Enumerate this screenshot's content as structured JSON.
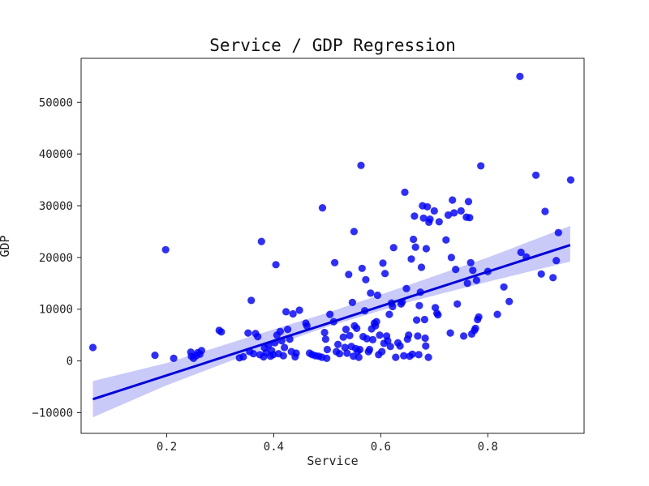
{
  "chart_data": {
    "type": "scatter",
    "title": "Service / GDP Regression",
    "xlabel": "Service",
    "ylabel": "GDP",
    "xlim": [
      0.04,
      0.98
    ],
    "ylim": [
      -14000,
      58500
    ],
    "xticks": [
      0.2,
      0.4,
      0.6,
      0.8
    ],
    "yticks": [
      -10000,
      0,
      10000,
      20000,
      30000,
      40000,
      50000
    ],
    "xtick_labels": [
      "0.2",
      "0.4",
      "0.6",
      "0.8"
    ],
    "ytick_labels": [
      "−10000",
      "0",
      "10000",
      "20000",
      "30000",
      "40000",
      "50000"
    ],
    "grid": false,
    "colors": {
      "points": "#0000ff",
      "line": "#0000dd",
      "band": "#b8b8f5"
    },
    "regression": {
      "x0": 0.062,
      "y0": -7400,
      "x1": 0.954,
      "y1": 22400
    },
    "confidence_band": [
      {
        "x": 0.062,
        "lower": -10900,
        "upper": -3900
      },
      {
        "x": 0.2,
        "lower": -4700,
        "upper": -400
      },
      {
        "x": 0.35,
        "lower": 1200,
        "upper": 4500
      },
      {
        "x": 0.5,
        "lower": 6600,
        "upper": 9300
      },
      {
        "x": 0.65,
        "lower": 11300,
        "upper": 14600
      },
      {
        "x": 0.8,
        "lower": 15300,
        "upper": 20000
      },
      {
        "x": 0.954,
        "lower": 19200,
        "upper": 26100
      }
    ],
    "points": [
      [
        0.062,
        2600
      ],
      [
        0.178,
        1100
      ],
      [
        0.198,
        21500
      ],
      [
        0.213,
        500
      ],
      [
        0.245,
        1700
      ],
      [
        0.246,
        900
      ],
      [
        0.25,
        500
      ],
      [
        0.255,
        1000
      ],
      [
        0.258,
        1600
      ],
      [
        0.262,
        1300
      ],
      [
        0.265,
        2000
      ],
      [
        0.298,
        5900
      ],
      [
        0.302,
        5600
      ],
      [
        0.336,
        600
      ],
      [
        0.343,
        800
      ],
      [
        0.352,
        5400
      ],
      [
        0.355,
        1800
      ],
      [
        0.358,
        11700
      ],
      [
        0.362,
        1400
      ],
      [
        0.366,
        5300
      ],
      [
        0.37,
        4700
      ],
      [
        0.374,
        1200
      ],
      [
        0.377,
        23100
      ],
      [
        0.381,
        800
      ],
      [
        0.383,
        2500
      ],
      [
        0.386,
        1600
      ],
      [
        0.39,
        3000
      ],
      [
        0.394,
        900
      ],
      [
        0.396,
        2000
      ],
      [
        0.399,
        1200
      ],
      [
        0.402,
        3500
      ],
      [
        0.404,
        18600
      ],
      [
        0.406,
        5000
      ],
      [
        0.409,
        1400
      ],
      [
        0.412,
        5700
      ],
      [
        0.415,
        3900
      ],
      [
        0.418,
        1000
      ],
      [
        0.42,
        2600
      ],
      [
        0.423,
        9500
      ],
      [
        0.426,
        6100
      ],
      [
        0.43,
        4200
      ],
      [
        0.433,
        1800
      ],
      [
        0.436,
        9100
      ],
      [
        0.44,
        800
      ],
      [
        0.442,
        1500
      ],
      [
        0.448,
        9800
      ],
      [
        0.46,
        7300
      ],
      [
        0.462,
        6800
      ],
      [
        0.467,
        1500
      ],
      [
        0.472,
        1200
      ],
      [
        0.478,
        1000
      ],
      [
        0.484,
        900
      ],
      [
        0.49,
        700
      ],
      [
        0.491,
        29600
      ],
      [
        0.495,
        5500
      ],
      [
        0.497,
        4200
      ],
      [
        0.499,
        500
      ],
      [
        0.5,
        2200
      ],
      [
        0.505,
        9000
      ],
      [
        0.512,
        7600
      ],
      [
        0.514,
        19000
      ],
      [
        0.517,
        1800
      ],
      [
        0.52,
        3200
      ],
      [
        0.523,
        1400
      ],
      [
        0.53,
        4600
      ],
      [
        0.533,
        2600
      ],
      [
        0.535,
        6100
      ],
      [
        0.537,
        1500
      ],
      [
        0.54,
        16700
      ],
      [
        0.542,
        4900
      ],
      [
        0.545,
        2800
      ],
      [
        0.547,
        11300
      ],
      [
        0.549,
        900
      ],
      [
        0.55,
        25000
      ],
      [
        0.551,
        6800
      ],
      [
        0.553,
        2400
      ],
      [
        0.555,
        6300
      ],
      [
        0.557,
        1900
      ],
      [
        0.559,
        700
      ],
      [
        0.561,
        2200
      ],
      [
        0.563,
        37800
      ],
      [
        0.565,
        17900
      ],
      [
        0.567,
        4700
      ],
      [
        0.57,
        9700
      ],
      [
        0.572,
        15700
      ],
      [
        0.574,
        4300
      ],
      [
        0.577,
        1800
      ],
      [
        0.579,
        2200
      ],
      [
        0.581,
        13100
      ],
      [
        0.583,
        6200
      ],
      [
        0.585,
        4100
      ],
      [
        0.588,
        7300
      ],
      [
        0.59,
        6800
      ],
      [
        0.592,
        7600
      ],
      [
        0.594,
        12700
      ],
      [
        0.596,
        1200
      ],
      [
        0.598,
        5000
      ],
      [
        0.602,
        1800
      ],
      [
        0.604,
        18900
      ],
      [
        0.606,
        3400
      ],
      [
        0.608,
        16900
      ],
      [
        0.611,
        4800
      ],
      [
        0.613,
        3900
      ],
      [
        0.616,
        9000
      ],
      [
        0.618,
        2800
      ],
      [
        0.62,
        11200
      ],
      [
        0.622,
        10500
      ],
      [
        0.624,
        21900
      ],
      [
        0.628,
        700
      ],
      [
        0.632,
        3500
      ],
      [
        0.636,
        2900
      ],
      [
        0.638,
        11000
      ],
      [
        0.64,
        11400
      ],
      [
        0.643,
        1000
      ],
      [
        0.645,
        32600
      ],
      [
        0.648,
        14000
      ],
      [
        0.65,
        4200
      ],
      [
        0.652,
        5000
      ],
      [
        0.654,
        900
      ],
      [
        0.657,
        19700
      ],
      [
        0.659,
        1300
      ],
      [
        0.661,
        23500
      ],
      [
        0.663,
        28000
      ],
      [
        0.665,
        22000
      ],
      [
        0.667,
        7900
      ],
      [
        0.669,
        4800
      ],
      [
        0.671,
        1200
      ],
      [
        0.672,
        10700
      ],
      [
        0.674,
        13300
      ],
      [
        0.676,
        18100
      ],
      [
        0.678,
        30000
      ],
      [
        0.68,
        27600
      ],
      [
        0.682,
        8000
      ],
      [
        0.683,
        4400
      ],
      [
        0.684,
        2900
      ],
      [
        0.685,
        21700
      ],
      [
        0.687,
        29800
      ],
      [
        0.689,
        700
      ],
      [
        0.69,
        26800
      ],
      [
        0.692,
        27400
      ],
      [
        0.7,
        29000
      ],
      [
        0.702,
        10300
      ],
      [
        0.705,
        9200
      ],
      [
        0.707,
        8900
      ],
      [
        0.709,
        26900
      ],
      [
        0.722,
        23400
      ],
      [
        0.726,
        28200
      ],
      [
        0.73,
        5400
      ],
      [
        0.732,
        20000
      ],
      [
        0.734,
        31100
      ],
      [
        0.737,
        28600
      ],
      [
        0.74,
        17700
      ],
      [
        0.743,
        11000
      ],
      [
        0.75,
        29000
      ],
      [
        0.755,
        4800
      ],
      [
        0.76,
        27800
      ],
      [
        0.762,
        15000
      ],
      [
        0.764,
        30800
      ],
      [
        0.766,
        27700
      ],
      [
        0.768,
        19000
      ],
      [
        0.77,
        5200
      ],
      [
        0.772,
        17500
      ],
      [
        0.775,
        5900
      ],
      [
        0.777,
        6300
      ],
      [
        0.779,
        15600
      ],
      [
        0.781,
        8000
      ],
      [
        0.783,
        8500
      ],
      [
        0.787,
        37700
      ],
      [
        0.8,
        17300
      ],
      [
        0.818,
        9000
      ],
      [
        0.83,
        14300
      ],
      [
        0.84,
        11500
      ],
      [
        0.86,
        55000
      ],
      [
        0.862,
        21000
      ],
      [
        0.872,
        20100
      ],
      [
        0.89,
        35900
      ],
      [
        0.9,
        16800
      ],
      [
        0.907,
        28900
      ],
      [
        0.922,
        16100
      ],
      [
        0.928,
        19400
      ],
      [
        0.932,
        24800
      ],
      [
        0.955,
        35000
      ]
    ]
  }
}
